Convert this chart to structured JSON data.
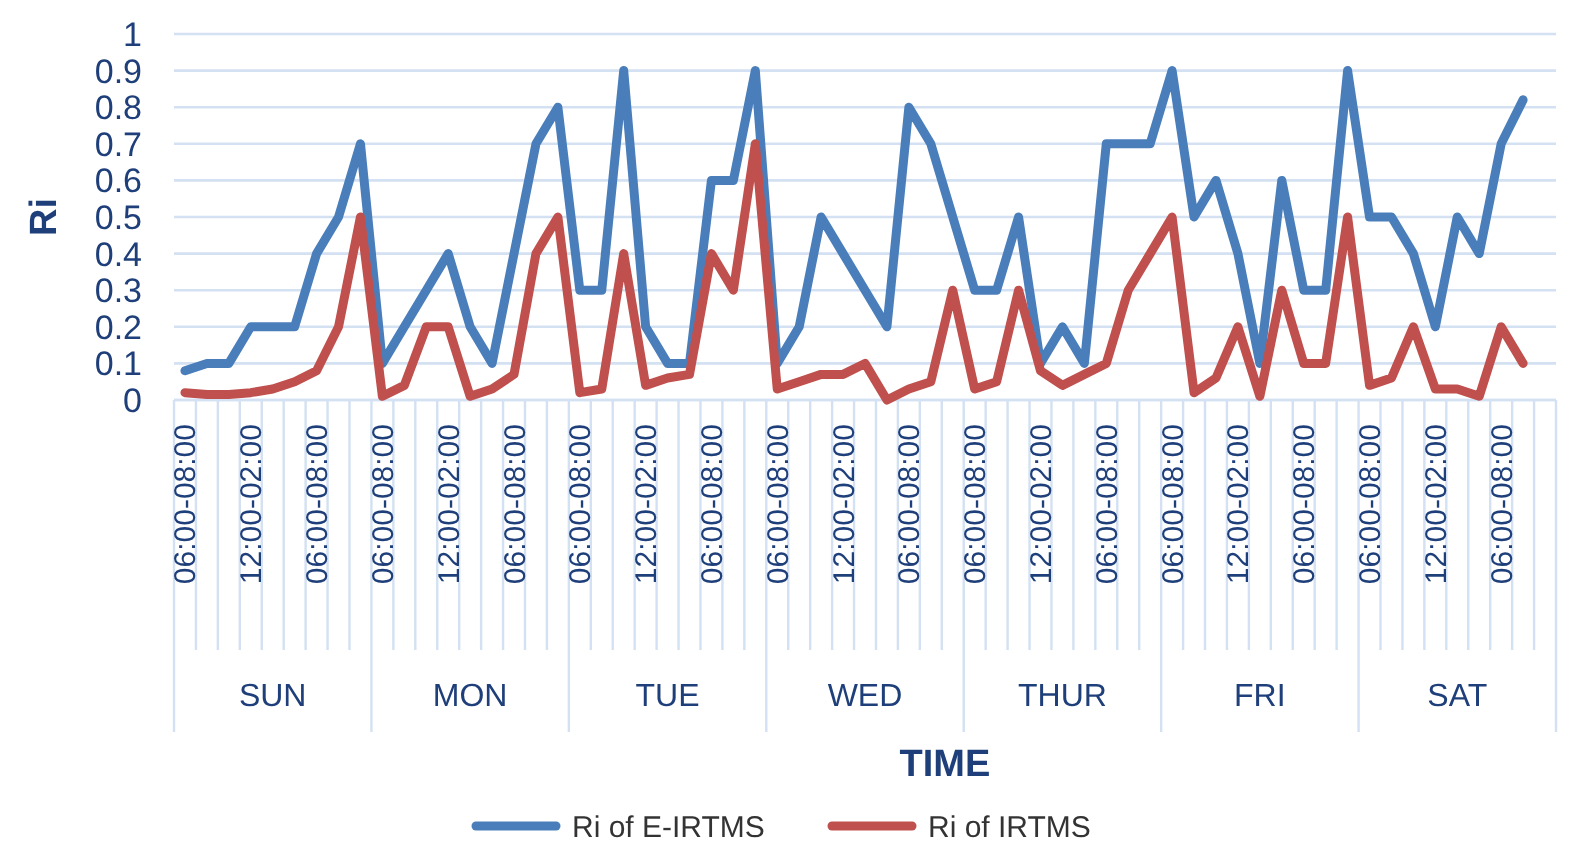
{
  "chart_data": {
    "type": "line",
    "xlabel": "TIME",
    "ylabel": "Ri",
    "categories": [
      "06:00-08:00",
      null,
      null,
      "12:00-02:00",
      null,
      null,
      "06:00-08:00",
      null,
      null,
      "06:00-08:00",
      null,
      null,
      "12:00-02:00",
      null,
      null,
      "06:00-08:00",
      null,
      null,
      "06:00-08:00",
      null,
      null,
      "12:00-02:00",
      null,
      null,
      "06:00-08:00",
      null,
      null,
      "06:00-08:00",
      null,
      null,
      "12:00-02:00",
      null,
      null,
      "06:00-08:00",
      null,
      null,
      "06:00-08:00",
      null,
      null,
      "12:00-02:00",
      null,
      null,
      "06:00-08:00",
      null,
      null,
      "06:00-08:00",
      null,
      null,
      "12:00-02:00",
      null,
      null,
      "06:00-08:00",
      null,
      null,
      "06:00-08:00",
      null,
      null,
      "12:00-02:00",
      null,
      null,
      "06:00-08:00",
      null,
      null
    ],
    "annotations": [
      "SUN",
      "MON",
      "TUE",
      "WED",
      "THUR",
      "FRI",
      "SAT"
    ],
    "series": [
      {
        "name": "Ri of E-IRTMS",
        "color": "#4a7ebb",
        "values": [
          0.08,
          0.1,
          0.1,
          0.2,
          0.2,
          0.2,
          0.4,
          0.5,
          0.7,
          0.1,
          0.2,
          0.3,
          0.4,
          0.2,
          0.1,
          0.4,
          0.7,
          0.8,
          0.3,
          0.3,
          0.9,
          0.2,
          0.1,
          0.1,
          0.6,
          0.6,
          0.9,
          0.1,
          0.2,
          0.5,
          0.4,
          0.3,
          0.2,
          0.8,
          0.7,
          0.5,
          0.3,
          0.3,
          0.5,
          0.1,
          0.2,
          0.1,
          0.7,
          0.7,
          0.7,
          0.9,
          0.5,
          0.6,
          0.4,
          0.1,
          0.6,
          0.3,
          0.3,
          0.9,
          0.5,
          0.5,
          0.4,
          0.2,
          0.5,
          0.4,
          0.7,
          0.82,
          null
        ]
      },
      {
        "name": "Ri of IRTMS",
        "color": "#c0504d",
        "values": [
          0.02,
          0.015,
          0.015,
          0.02,
          0.03,
          0.05,
          0.08,
          0.2,
          0.5,
          0.01,
          0.04,
          0.2,
          0.2,
          0.01,
          0.03,
          0.07,
          0.4,
          0.5,
          0.02,
          0.03,
          0.4,
          0.04,
          0.06,
          0.07,
          0.4,
          0.3,
          0.7,
          0.03,
          0.05,
          0.07,
          0.07,
          0.1,
          0.0,
          0.03,
          0.05,
          0.3,
          0.03,
          0.05,
          0.3,
          0.08,
          0.04,
          0.07,
          0.1,
          0.3,
          0.4,
          0.5,
          0.02,
          0.06,
          0.2,
          0.01,
          0.3,
          0.1,
          0.1,
          0.5,
          0.04,
          0.06,
          0.2,
          0.03,
          0.03,
          0.01,
          0.2,
          0.1,
          null
        ]
      }
    ],
    "ylim": [
      0,
      1
    ],
    "yticks": [
      0,
      0.1,
      0.2,
      0.3,
      0.4,
      0.5,
      0.6,
      0.7,
      0.8,
      0.9,
      1
    ],
    "grid": "y",
    "legend": "bottom",
    "line_style": "solid",
    "marker": "none"
  }
}
